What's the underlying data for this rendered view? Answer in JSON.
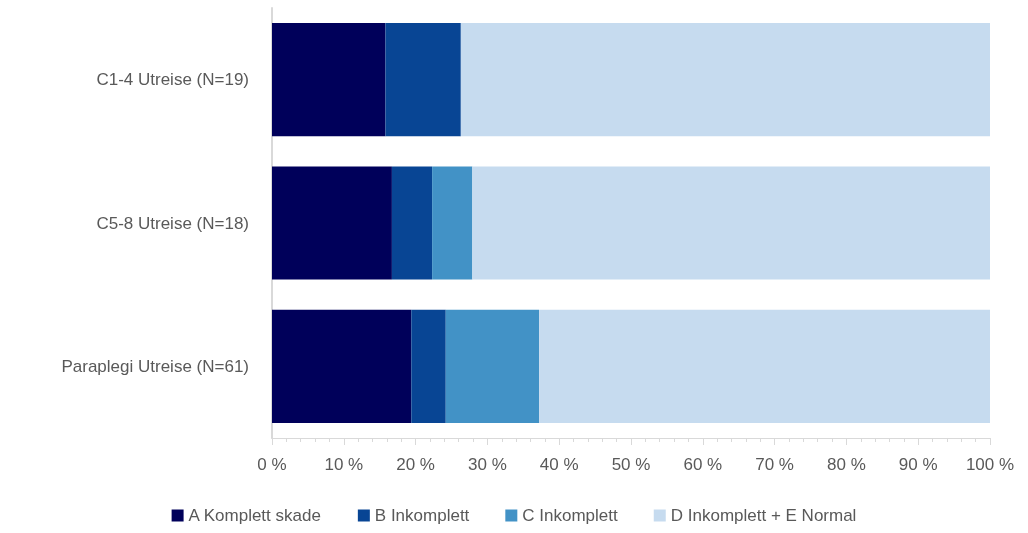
{
  "chart_data": {
    "type": "bar",
    "orientation": "horizontal",
    "stacked": true,
    "categories": [
      "C1-4 Utreise (N=19)",
      "C5-8 Utreise (N=18)",
      "Paraplegi Utreise (N=61)"
    ],
    "series": [
      {
        "name": "A Komplett skade",
        "color": "#00005a",
        "values": [
          15.8,
          16.7,
          19.4
        ]
      },
      {
        "name": "B Inkomplett",
        "color": "#084594",
        "values": [
          10.5,
          5.6,
          4.8
        ]
      },
      {
        "name": "C Inkomplett",
        "color": "#4292c6",
        "values": [
          0,
          5.6,
          13.0
        ]
      },
      {
        "name": "D Inkomplett + E Normal",
        "color": "#c6dbef",
        "values": [
          73.7,
          72.1,
          62.8
        ]
      }
    ],
    "xlim": [
      0,
      100
    ],
    "xticks": [
      {
        "value": 0,
        "label": "0 %"
      },
      {
        "value": 2,
        "label": null
      },
      {
        "value": 4,
        "label": null
      },
      {
        "value": 6,
        "label": null
      },
      {
        "value": 8,
        "label": null
      },
      {
        "value": 10,
        "label": "10 %"
      },
      {
        "value": 12,
        "label": null
      },
      {
        "value": 14,
        "label": null
      },
      {
        "value": 16,
        "label": null
      },
      {
        "value": 18,
        "label": null
      },
      {
        "value": 20,
        "label": "20 %"
      },
      {
        "value": 22,
        "label": null
      },
      {
        "value": 24,
        "label": null
      },
      {
        "value": 26,
        "label": null
      },
      {
        "value": 28,
        "label": null
      },
      {
        "value": 30,
        "label": "30 %"
      },
      {
        "value": 32,
        "label": null
      },
      {
        "value": 34,
        "label": null
      },
      {
        "value": 36,
        "label": null
      },
      {
        "value": 38,
        "label": null
      },
      {
        "value": 40,
        "label": "40 %"
      },
      {
        "value": 42,
        "label": null
      },
      {
        "value": 44,
        "label": null
      },
      {
        "value": 46,
        "label": null
      },
      {
        "value": 48,
        "label": null
      },
      {
        "value": 50,
        "label": "50 %"
      },
      {
        "value": 52,
        "label": null
      },
      {
        "value": 54,
        "label": null
      },
      {
        "value": 56,
        "label": null
      },
      {
        "value": 58,
        "label": null
      },
      {
        "value": 60,
        "label": "60 %"
      },
      {
        "value": 62,
        "label": null
      },
      {
        "value": 64,
        "label": null
      },
      {
        "value": 66,
        "label": null
      },
      {
        "value": 68,
        "label": null
      },
      {
        "value": 70,
        "label": "70 %"
      },
      {
        "value": 72,
        "label": null
      },
      {
        "value": 74,
        "label": null
      },
      {
        "value": 76,
        "label": null
      },
      {
        "value": 78,
        "label": null
      },
      {
        "value": 80,
        "label": "80 %"
      },
      {
        "value": 82,
        "label": null
      },
      {
        "value": 84,
        "label": null
      },
      {
        "value": 86,
        "label": null
      },
      {
        "value": 88,
        "label": null
      },
      {
        "value": 90,
        "label": "90 %"
      },
      {
        "value": 92,
        "label": null
      },
      {
        "value": 94,
        "label": null
      },
      {
        "value": 96,
        "label": null
      },
      {
        "value": 98,
        "label": null
      },
      {
        "value": 100,
        "label": "100 %"
      }
    ],
    "legend": "bottom",
    "grid": false
  }
}
